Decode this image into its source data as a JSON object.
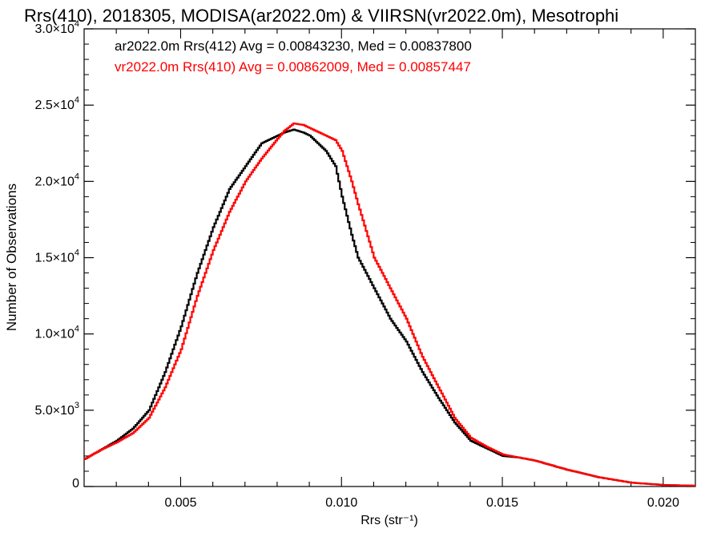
{
  "chart_data": {
    "type": "line",
    "title": "Rrs(410), 2018305, MODISA(ar2022.0m) & VIIRSN(vr2022.0m), Mesotrophi",
    "xlabel": "Rrs (str⁻¹)",
    "ylabel": "Number of Observations",
    "xlim": [
      0.002,
      0.021
    ],
    "ylim": [
      0,
      30000
    ],
    "x_ticks": [
      {
        "value": 0.005,
        "label": "0.005"
      },
      {
        "value": 0.01,
        "label": "0.010"
      },
      {
        "value": 0.015,
        "label": "0.015"
      },
      {
        "value": 0.02,
        "label": "0.020"
      }
    ],
    "y_ticks": [
      {
        "value": 0,
        "label": "0",
        "mant": "",
        "exp": ""
      },
      {
        "value": 5000,
        "label": "5.0×10",
        "mant": "5.0",
        "exp": "3"
      },
      {
        "value": 10000,
        "label": "1.0×10",
        "mant": "1.0",
        "exp": "4"
      },
      {
        "value": 15000,
        "label": "1.5×10",
        "mant": "1.5",
        "exp": "4"
      },
      {
        "value": 20000,
        "label": "2.0×10",
        "mant": "2.0",
        "exp": "4"
      },
      {
        "value": 25000,
        "label": "2.5×10",
        "mant": "2.5",
        "exp": "4"
      },
      {
        "value": 30000,
        "label": "3.0×10",
        "mant": "3.0",
        "exp": "4"
      }
    ],
    "grid": false,
    "legend": "top-left",
    "series": [
      {
        "name": "ar2022.0m Rrs(412) Avg = 0.00843230, Med = 0.00837800",
        "color": "#000000",
        "x": [
          0.002,
          0.0025,
          0.003,
          0.0035,
          0.004,
          0.0045,
          0.005,
          0.0055,
          0.006,
          0.0065,
          0.007,
          0.0075,
          0.008,
          0.0082,
          0.0085,
          0.0088,
          0.009,
          0.0093,
          0.0095,
          0.0098,
          0.01,
          0.0103,
          0.0105,
          0.011,
          0.0115,
          0.012,
          0.0125,
          0.013,
          0.0135,
          0.014,
          0.0145,
          0.015,
          0.0155,
          0.016,
          0.017,
          0.018,
          0.019,
          0.02,
          0.021
        ],
        "y": [
          1800,
          2400,
          3000,
          3800,
          5000,
          7500,
          10500,
          14000,
          17000,
          19500,
          21000,
          22500,
          23000,
          23200,
          23400,
          23200,
          23000,
          22400,
          22000,
          21000,
          19000,
          16500,
          15000,
          13000,
          11000,
          9500,
          7500,
          5800,
          4200,
          3000,
          2500,
          2000,
          1900,
          1700,
          1100,
          600,
          250,
          100,
          50
        ]
      },
      {
        "name": "vr2022.0m Rrs(410) Avg = 0.00862009, Med = 0.00857447",
        "color": "#ff0000",
        "x": [
          0.002,
          0.0025,
          0.003,
          0.0035,
          0.004,
          0.0045,
          0.005,
          0.0055,
          0.006,
          0.0065,
          0.007,
          0.0075,
          0.008,
          0.0082,
          0.0085,
          0.0088,
          0.009,
          0.0093,
          0.0095,
          0.0098,
          0.01,
          0.0103,
          0.0105,
          0.011,
          0.0115,
          0.012,
          0.0125,
          0.013,
          0.0135,
          0.014,
          0.0145,
          0.015,
          0.0155,
          0.016,
          0.017,
          0.018,
          0.019,
          0.02,
          0.021
        ],
        "y": [
          1800,
          2400,
          2900,
          3500,
          4500,
          6500,
          9000,
          12500,
          15500,
          18000,
          20000,
          21500,
          22800,
          23300,
          23800,
          23700,
          23500,
          23200,
          23000,
          22700,
          22000,
          20000,
          18500,
          15000,
          13000,
          11000,
          8500,
          6500,
          4500,
          3200,
          2600,
          2100,
          1900,
          1700,
          1100,
          600,
          250,
          100,
          50
        ]
      }
    ]
  }
}
